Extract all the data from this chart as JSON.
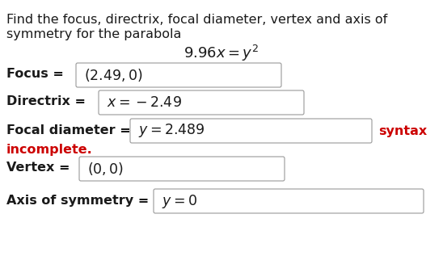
{
  "title_line1": "Find the focus, directrix, focal diameter, vertex and axis of",
  "title_line2": "symmetry for the parabola",
  "focus_label": "Focus = ",
  "focus_value": "(2.49,0)",
  "directrix_label": "Directrix = ",
  "directrix_value": "x = −2.49",
  "focal_label": "Focal diameter = ",
  "focal_value": "y = 2.489",
  "syntax_text": "syntax",
  "incomplete_text": "incomplete.",
  "vertex_label": "Vertex = ",
  "vertex_value": "(0,0)",
  "axis_label": "Axis of symmetry = ",
  "axis_value": "y = 0",
  "bg_color": "#ffffff",
  "text_color": "#1a1a1a",
  "red_color": "#cc0000",
  "box_edge_color": "#999999",
  "label_fontsize": 11.5,
  "value_fontsize": 11.5,
  "title_fontsize": 11.5,
  "eq_fontsize": 13
}
